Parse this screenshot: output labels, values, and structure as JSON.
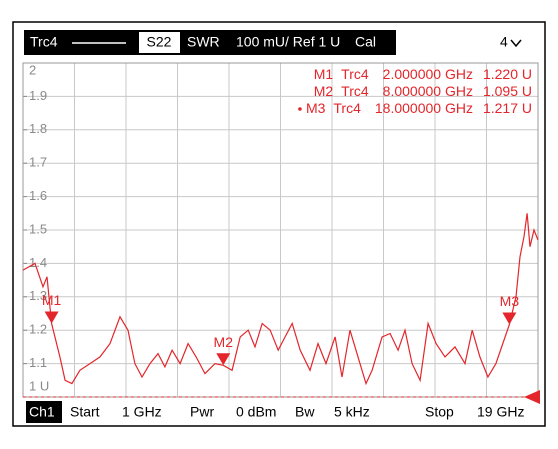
{
  "chart_data": {
    "type": "line",
    "header": {
      "trace": "Trc4",
      "param": "S22",
      "format": "SWR",
      "scale": "100 mU/ Ref 1 U",
      "cal": "Cal",
      "channel_count": "4"
    },
    "footer": {
      "channel": "Ch1",
      "start_label": "Start",
      "start": "1 GHz",
      "power_label": "Pwr",
      "power": "0 dBm",
      "bw_label": "Bw",
      "bw": "5 kHz",
      "stop_label": "Stop",
      "stop": "19 GHz"
    },
    "xlim": [
      1,
      19
    ],
    "ylim": [
      1,
      2
    ],
    "yticks": [
      2,
      1.9,
      1.8,
      1.7,
      1.6,
      1.5,
      1.4,
      1.3,
      1.2,
      1.1,
      {
        "value": 1,
        "label": "1 U"
      }
    ],
    "grid": true,
    "series": [
      {
        "name": "Trc4",
        "color": "#e3262b",
        "x": [
          1.0,
          1.42,
          1.7,
          1.84,
          2.0,
          2.29,
          2.47,
          2.71,
          2.99,
          3.34,
          3.69,
          4.04,
          4.39,
          4.67,
          4.91,
          5.16,
          5.44,
          5.72,
          5.96,
          6.21,
          6.49,
          6.77,
          7.05,
          7.36,
          7.71,
          8.0,
          8.31,
          8.59,
          8.87,
          9.11,
          9.36,
          9.64,
          9.92,
          10.16,
          10.41,
          10.69,
          11.03,
          11.31,
          11.59,
          11.91,
          12.15,
          12.43,
          12.71,
          12.99,
          13.2,
          13.55,
          13.83,
          14.11,
          14.35,
          14.6,
          14.88,
          15.16,
          15.44,
          15.75,
          16.1,
          16.45,
          16.7,
          16.97,
          17.25,
          17.53,
          18.0,
          18.23,
          18.37,
          18.51,
          18.62,
          18.72,
          18.86,
          19.0
        ],
        "values": [
          1.38,
          1.4,
          1.33,
          1.36,
          1.22,
          1.12,
          1.05,
          1.04,
          1.08,
          1.1,
          1.12,
          1.16,
          1.24,
          1.2,
          1.1,
          1.06,
          1.1,
          1.13,
          1.09,
          1.14,
          1.1,
          1.16,
          1.12,
          1.07,
          1.1,
          1.095,
          1.08,
          1.18,
          1.2,
          1.15,
          1.22,
          1.2,
          1.14,
          1.18,
          1.22,
          1.14,
          1.08,
          1.16,
          1.1,
          1.18,
          1.06,
          1.2,
          1.12,
          1.04,
          1.08,
          1.18,
          1.19,
          1.14,
          1.2,
          1.1,
          1.05,
          1.22,
          1.16,
          1.12,
          1.15,
          1.1,
          1.2,
          1.12,
          1.06,
          1.1,
          1.217,
          1.3,
          1.42,
          1.48,
          1.55,
          1.45,
          1.5,
          1.47
        ]
      }
    ],
    "markers": [
      {
        "name": "M1",
        "trace": "Trc4",
        "stimulus": "2.000000 GHz",
        "response": "1.220 U",
        "x": 2,
        "y": 1.22
      },
      {
        "name": "M2",
        "trace": "Trc4",
        "stimulus": "8.000000 GHz",
        "response": "1.095 U",
        "x": 8,
        "y": 1.095
      },
      {
        "name": "M3",
        "trace": "Trc4",
        "stimulus": "18.000000 GHz",
        "response": "1.217 U",
        "x": 18,
        "y": 1.217
      }
    ]
  }
}
